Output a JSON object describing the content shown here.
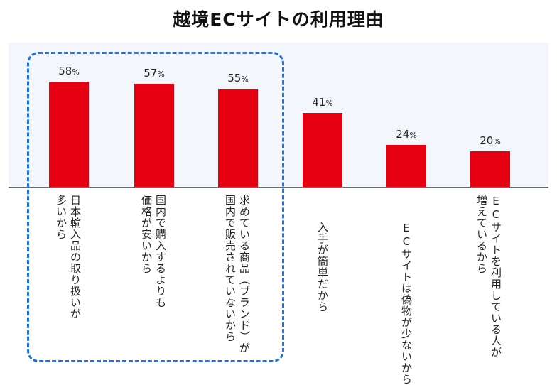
{
  "title": "越境ECサイトの利用理由",
  "colors": {
    "bar": "#e60012",
    "plot_bg": "#f3f7fc",
    "highlight": "#1a73e8",
    "baseline": "#6b6b6b"
  },
  "bars": [
    {
      "label_line1": "日本輸入品の取り扱いが",
      "label_line2": "多いから",
      "value": "58",
      "unit": "%"
    },
    {
      "label_line1": "国内で購入するよりも",
      "label_line2": "価格が安いから",
      "value": "57",
      "unit": "%"
    },
    {
      "label_line1": "求めている商品（ブランド）が",
      "label_line2": "国内で販売されていないから",
      "value": "55",
      "unit": "%"
    },
    {
      "label_line1": "入手が簡単だから",
      "label_line2": "",
      "value": "41",
      "unit": "%"
    },
    {
      "label_line1": "ECサイトは偽物が少ないから",
      "label_line2": "",
      "value": "24",
      "unit": "%"
    },
    {
      "label_line1": "ECサイトを利用している人が",
      "label_line2": "増えているから",
      "value": "20",
      "unit": "%"
    }
  ],
  "highlight": {
    "covers": [
      "日本輸入品の取り扱いが多いから",
      "国内で購入するよりも価格が安いから",
      "求めている商品（ブランド）が国内で販売されていないから"
    ]
  },
  "chart_data": {
    "type": "bar",
    "title": "越境ECサイトの利用理由",
    "categories": [
      "日本輸入品の取り扱いが多いから",
      "国内で購入するよりも価格が安いから",
      "求めている商品（ブランド）が国内で販売されていないから",
      "入手が簡単だから",
      "ECサイトは偽物が少ないから",
      "ECサイトを利用している人が増えているから"
    ],
    "values": [
      58,
      57,
      55,
      41,
      24,
      20
    ],
    "unit": "%",
    "xlabel": "",
    "ylabel": "",
    "ylim": [
      0,
      100
    ],
    "grid": false,
    "legend": null,
    "data_labels": true,
    "annotations": [
      "Dashed blue rounded box highlighting the top 3 bars"
    ]
  }
}
